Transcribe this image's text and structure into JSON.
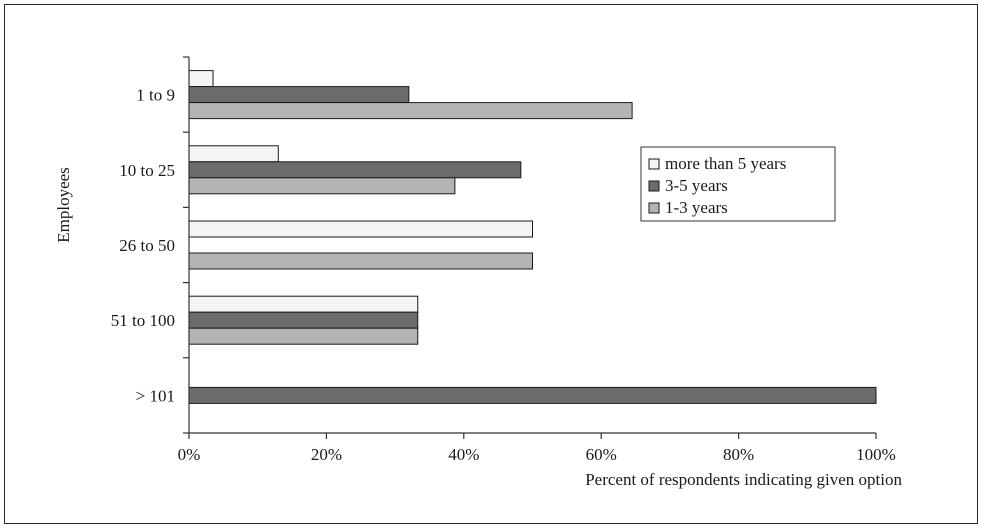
{
  "chart_data": {
    "type": "bar",
    "orientation": "horizontal",
    "categories": [
      "1 to 9",
      "10 to 25",
      "26 to 50",
      "51 to 100",
      "> 101"
    ],
    "series": [
      {
        "name": "more than 5 years",
        "values": [
          3.5,
          13,
          50,
          33.3,
          0
        ],
        "color": "#f4f4f4"
      },
      {
        "name": "3-5 years",
        "values": [
          32,
          48.3,
          0,
          33.3,
          100
        ],
        "color": "#6b6b6b"
      },
      {
        "name": "1-3 years",
        "values": [
          64.5,
          38.7,
          50,
          33.3,
          0
        ],
        "color": "#b4b4b4"
      }
    ],
    "xticks": [
      "0%",
      "20%",
      "40%",
      "60%",
      "80%",
      "100%"
    ],
    "xlim": [
      0,
      100
    ],
    "xlabel": "Percent of respondents indicating given option",
    "ylabel": "Employees",
    "legend_position": "right",
    "grid": false
  }
}
